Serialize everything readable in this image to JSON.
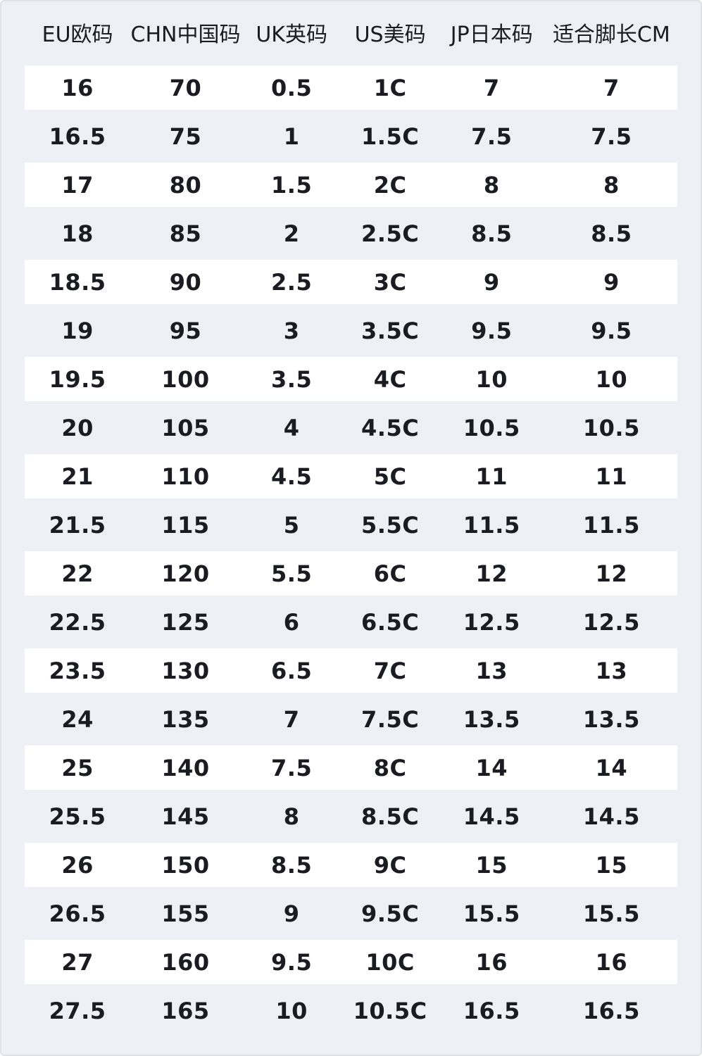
{
  "table": {
    "columns": [
      {
        "key": "eu",
        "label": "EU欧码"
      },
      {
        "key": "chn",
        "label": "CHN中国码"
      },
      {
        "key": "uk",
        "label": "UK英码"
      },
      {
        "key": "us",
        "label": "US美码"
      },
      {
        "key": "jp",
        "label": "JP日本码"
      },
      {
        "key": "cm",
        "label": "适合脚长CM"
      }
    ],
    "rows": [
      [
        "16",
        "70",
        "0.5",
        "1C",
        "7",
        "7"
      ],
      [
        "16.5",
        "75",
        "1",
        "1.5C",
        "7.5",
        "7.5"
      ],
      [
        "17",
        "80",
        "1.5",
        "2C",
        "8",
        "8"
      ],
      [
        "18",
        "85",
        "2",
        "2.5C",
        "8.5",
        "8.5"
      ],
      [
        "18.5",
        "90",
        "2.5",
        "3C",
        "9",
        "9"
      ],
      [
        "19",
        "95",
        "3",
        "3.5C",
        "9.5",
        "9.5"
      ],
      [
        "19.5",
        "100",
        "3.5",
        "4C",
        "10",
        "10"
      ],
      [
        "20",
        "105",
        "4",
        "4.5C",
        "10.5",
        "10.5"
      ],
      [
        "21",
        "110",
        "4.5",
        "5C",
        "11",
        "11"
      ],
      [
        "21.5",
        "115",
        "5",
        "5.5C",
        "11.5",
        "11.5"
      ],
      [
        "22",
        "120",
        "5.5",
        "6C",
        "12",
        "12"
      ],
      [
        "22.5",
        "125",
        "6",
        "6.5C",
        "12.5",
        "12.5"
      ],
      [
        "23.5",
        "130",
        "6.5",
        "7C",
        "13",
        "13"
      ],
      [
        "24",
        "135",
        "7",
        "7.5C",
        "13.5",
        "13.5"
      ],
      [
        "25",
        "140",
        "7.5",
        "8C",
        "14",
        "14"
      ],
      [
        "25.5",
        "145",
        "8",
        "8.5C",
        "14.5",
        "14.5"
      ],
      [
        "26",
        "150",
        "8.5",
        "9C",
        "15",
        "15"
      ],
      [
        "26.5",
        "155",
        "9",
        "9.5C",
        "15.5",
        "15.5"
      ],
      [
        "27",
        "160",
        "9.5",
        "10C",
        "16",
        "16"
      ],
      [
        "27.5",
        "165",
        "10",
        "10.5C",
        "16.5",
        "16.5"
      ]
    ],
    "column_widths_percent": [
      16.2,
      16.9,
      15.6,
      14.6,
      16.5,
      20.2
    ]
  },
  "colors": {
    "background": "#eef0f6",
    "row_white": "#ffffff",
    "text": "#1b1b22",
    "edge": "#e0e2e8"
  }
}
